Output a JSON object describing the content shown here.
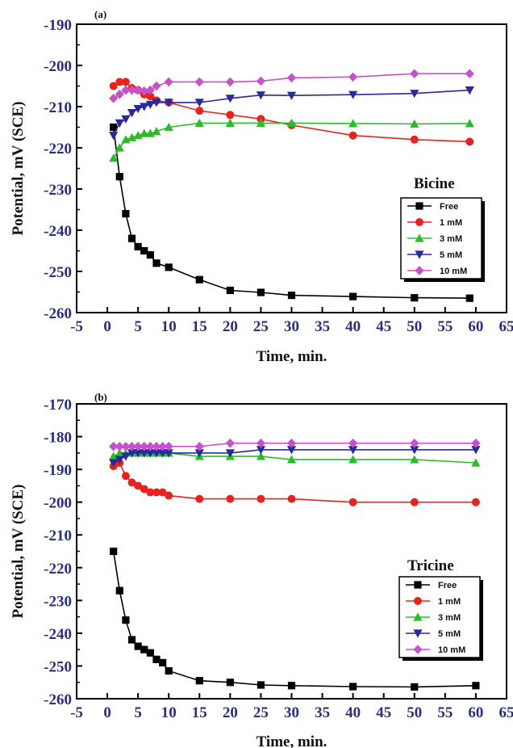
{
  "chart_data": [
    {
      "type": "line",
      "panel_label": "(a)",
      "compound": "Bicine",
      "xlabel": "Time, min.",
      "ylabel": "Potential, mV (SCE)",
      "xlim": [
        -5,
        65
      ],
      "ylim": [
        -260,
        -190
      ],
      "xticks": [
        "-5",
        "0",
        "5",
        "10",
        "15",
        "20",
        "25",
        "30",
        "35",
        "40",
        "45",
        "50",
        "55",
        "60",
        "65"
      ],
      "yticks": [
        "-190",
        "-200",
        "-210",
        "-220",
        "-230",
        "-240",
        "-250",
        "-260"
      ],
      "legend_position": "right",
      "series": [
        {
          "name": "Free",
          "color": "#000000",
          "marker": "square",
          "x": [
            1,
            2,
            3,
            4,
            5,
            6,
            7,
            8,
            10,
            15,
            20,
            25,
            30,
            40,
            50,
            59
          ],
          "y": [
            -215,
            -227,
            -236,
            -242,
            -244,
            -245,
            -246,
            -248,
            -249,
            -252,
            -254.6,
            -255.1,
            -255.8,
            -256.1,
            -256.4,
            -256.5
          ]
        },
        {
          "name": "1 mM",
          "color": "#e8231e",
          "marker": "circle",
          "x": [
            1,
            2,
            3,
            4,
            5,
            6,
            7,
            8,
            10,
            15,
            20,
            25,
            30,
            40,
            50,
            59
          ],
          "y": [
            -205,
            -204,
            -204,
            -205.5,
            -206,
            -207,
            -207.5,
            -208.5,
            -209,
            -211,
            -212,
            -213,
            -214.5,
            -217,
            -218,
            -218.5
          ]
        },
        {
          "name": "3 mM",
          "color": "#2dbb2d",
          "marker": "triangle-up",
          "x": [
            1,
            2,
            3,
            4,
            5,
            6,
            7,
            8,
            10,
            15,
            20,
            25,
            30,
            40,
            50,
            59
          ],
          "y": [
            -222.5,
            -220,
            -218,
            -217.5,
            -217,
            -216.5,
            -216.5,
            -216,
            -215,
            -214,
            -214,
            -214,
            -214,
            -214.1,
            -214.2,
            -214.1
          ]
        },
        {
          "name": "5 mM",
          "color": "#28299a",
          "marker": "triangle-down",
          "x": [
            1,
            2,
            3,
            4,
            5,
            6,
            7,
            8,
            10,
            15,
            20,
            25,
            30,
            40,
            50,
            59
          ],
          "y": [
            -217,
            -214,
            -213,
            -211.5,
            -210.5,
            -210,
            -209.5,
            -209,
            -209,
            -209,
            -208,
            -207.2,
            -207.3,
            -207.1,
            -206.8,
            -206
          ]
        },
        {
          "name": "10 mM",
          "color": "#c552c8",
          "marker": "diamond",
          "x": [
            1,
            2,
            3,
            4,
            5,
            6,
            7,
            8,
            10,
            15,
            20,
            25,
            30,
            40,
            50,
            59
          ],
          "y": [
            -208,
            -207,
            -206,
            -206,
            -206,
            -206.2,
            -206,
            -205,
            -204,
            -204,
            -204,
            -203.8,
            -203,
            -202.8,
            -202,
            -202
          ]
        }
      ]
    },
    {
      "type": "line",
      "panel_label": "(b)",
      "compound": "Tricine",
      "xlabel": "Time, min.",
      "ylabel": "Potential, mV (SCE)",
      "xlim": [
        -5,
        65
      ],
      "ylim": [
        -260,
        -170
      ],
      "xticks": [
        "-5",
        "0",
        "5",
        "10",
        "15",
        "20",
        "25",
        "30",
        "35",
        "40",
        "45",
        "50",
        "55",
        "60",
        "65"
      ],
      "yticks": [
        "-170",
        "-180",
        "-190",
        "-200",
        "-210",
        "-220",
        "-230",
        "-240",
        "-250",
        "-260"
      ],
      "legend_position": "right",
      "series": [
        {
          "name": "Free",
          "color": "#000000",
          "marker": "square",
          "x": [
            1,
            2,
            3,
            4,
            5,
            6,
            7,
            8,
            9,
            10,
            15,
            20,
            25,
            30,
            40,
            50,
            60
          ],
          "y": [
            -215,
            -227,
            -236,
            -242,
            -244,
            -245,
            -246,
            -248,
            -249,
            -251.5,
            -254.5,
            -255,
            -255.8,
            -256,
            -256.3,
            -256.4,
            -256
          ]
        },
        {
          "name": "1 mM",
          "color": "#e8231e",
          "marker": "circle",
          "x": [
            1,
            2,
            3,
            4,
            5,
            6,
            7,
            8,
            9,
            10,
            15,
            20,
            25,
            30,
            40,
            50,
            60
          ],
          "y": [
            -189,
            -188,
            -192,
            -194,
            -195,
            -196,
            -197,
            -197,
            -197,
            -198,
            -199,
            -199,
            -199,
            -199,
            -200,
            -200,
            -200
          ]
        },
        {
          "name": "3 mM",
          "color": "#2dbb2d",
          "marker": "triangle-up",
          "x": [
            1,
            2,
            3,
            4,
            5,
            6,
            7,
            8,
            9,
            10,
            15,
            20,
            25,
            30,
            40,
            50,
            60
          ],
          "y": [
            -186,
            -185,
            -185,
            -185,
            -185,
            -185,
            -185,
            -185,
            -185,
            -185,
            -186,
            -186,
            -186,
            -187,
            -187,
            -187,
            -188
          ]
        },
        {
          "name": "5 mM",
          "color": "#28299a",
          "marker": "triangle-down",
          "x": [
            1,
            2,
            3,
            4,
            5,
            6,
            7,
            8,
            9,
            10,
            15,
            20,
            25,
            30,
            40,
            50,
            60
          ],
          "y": [
            -188,
            -187,
            -186,
            -185,
            -185,
            -185,
            -185,
            -185,
            -185,
            -185,
            -185,
            -185,
            -184,
            -184,
            -184,
            -184,
            -184
          ]
        },
        {
          "name": "10 mM",
          "color": "#c552c8",
          "marker": "diamond",
          "x": [
            1,
            2,
            3,
            4,
            5,
            6,
            7,
            8,
            9,
            10,
            15,
            20,
            25,
            30,
            40,
            50,
            60
          ],
          "y": [
            -183,
            -183,
            -183,
            -183,
            -183,
            -183,
            -183,
            -183,
            -183,
            -183,
            -183,
            -182,
            -182,
            -182,
            -182,
            -182,
            -182
          ]
        }
      ]
    }
  ]
}
